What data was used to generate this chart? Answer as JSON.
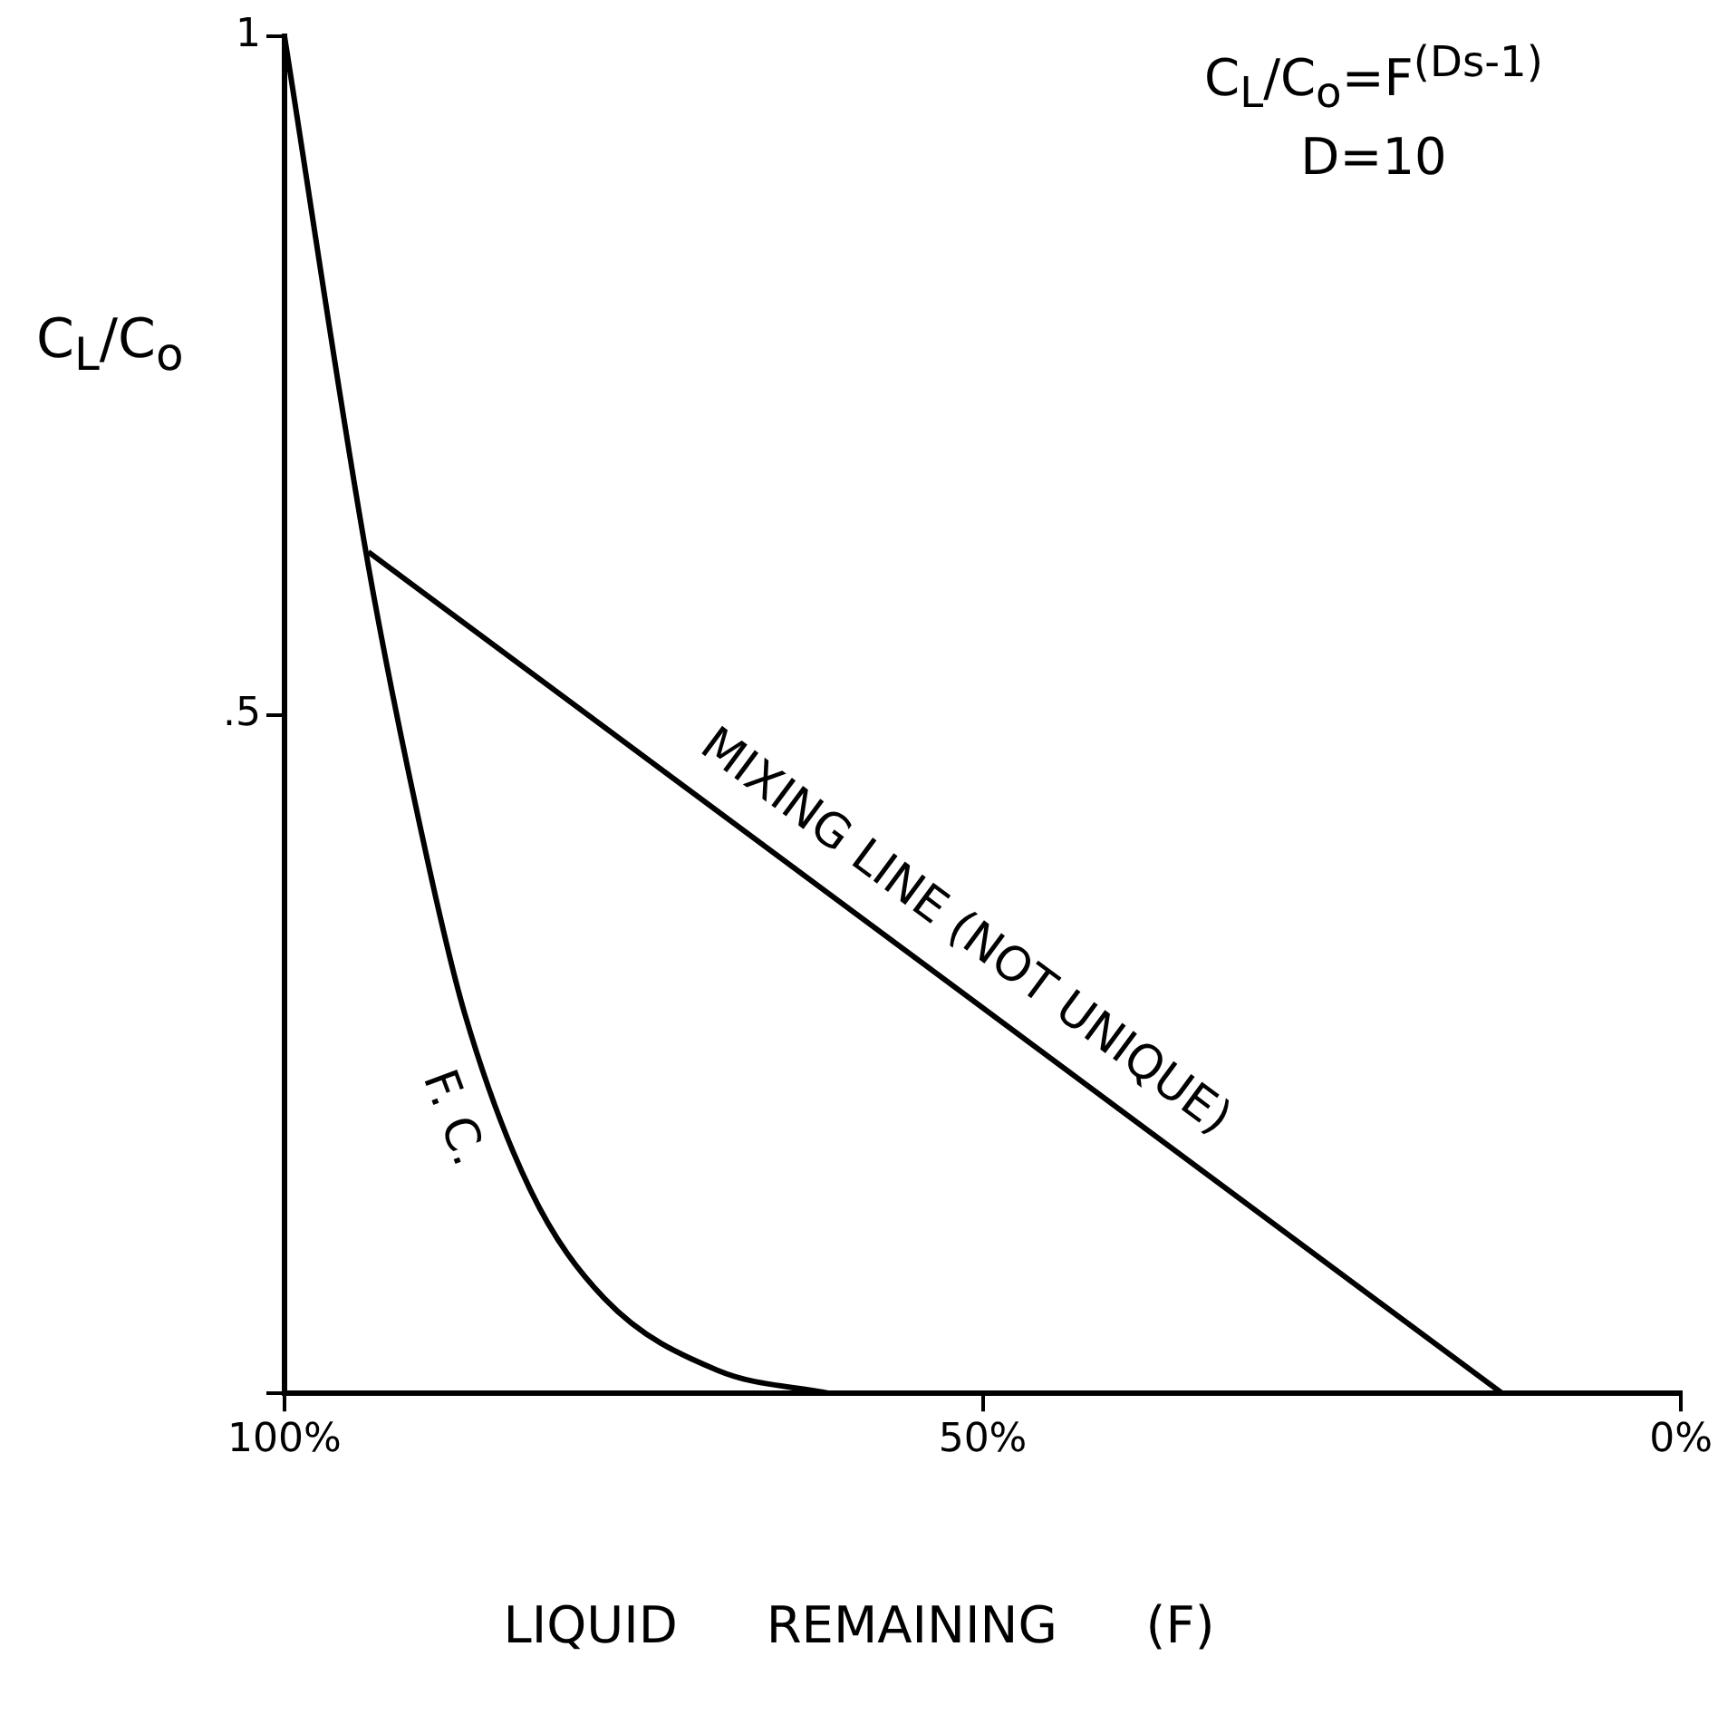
{
  "chart_data": {
    "type": "line",
    "xlabel": "LIQUID REMAINING (F)",
    "ylabel": "C$_{L}$/C$_{o}$",
    "annotations": [
      "C$_{L}$/C$_{o}$=F$^{(Ds-1)}$",
      "D=10"
    ],
    "xlim": [
      100,
      0
    ],
    "xticks": [
      {
        "value": 100,
        "label": "100%"
      },
      {
        "value": 50,
        "label": "50%"
      },
      {
        "value": 0,
        "label": "0%"
      }
    ],
    "ylim": [
      0,
      1
    ],
    "yticks": [
      {
        "value": 0,
        "label": null
      },
      {
        "value": 0.5,
        "label": ".5"
      },
      {
        "value": 1,
        "label": "1"
      }
    ],
    "grid": false,
    "legend": false,
    "marker": "none",
    "line_style": "solid",
    "series": [
      {
        "name": "F. C.",
        "color": "#000000",
        "x": [
          100,
          94,
          89.7,
          87.1,
          82.4,
          77.1,
          69,
          61
        ],
        "values": [
          1,
          0.61,
          0.39,
          0.28,
          0.15,
          0.07,
          0.017,
          0
        ]
      },
      {
        "name": "MIXING LINE (NOT UNIQUE)",
        "color": "#000000",
        "x": [
          94,
          12.8
        ],
        "values": [
          0.62,
          0
        ]
      }
    ]
  }
}
